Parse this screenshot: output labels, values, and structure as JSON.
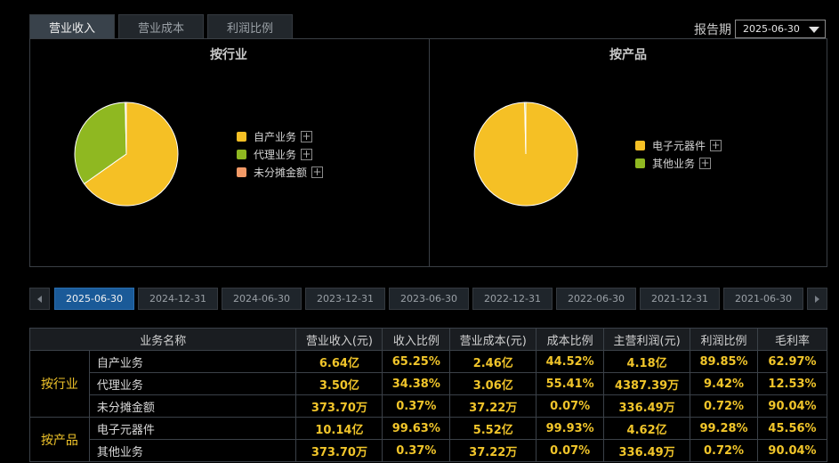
{
  "tabs": [
    {
      "label": "营业收入",
      "active": true
    },
    {
      "label": "营业成本",
      "active": false
    },
    {
      "label": "利润比例",
      "active": false
    }
  ],
  "report_period": {
    "label": "报告期",
    "value": "2025-06-30"
  },
  "chart_data": [
    {
      "type": "pie",
      "title": "按行业",
      "categories": [
        "自产业务",
        "代理业务",
        "未分摊金额"
      ],
      "values": [
        65.25,
        34.38,
        0.37
      ],
      "colors": [
        "#f5c025",
        "#8fb821",
        "#f29a67"
      ]
    },
    {
      "type": "pie",
      "title": "按产品",
      "categories": [
        "电子元器件",
        "其他业务"
      ],
      "values": [
        99.63,
        0.37
      ],
      "colors": [
        "#f5c025",
        "#8fb821"
      ]
    }
  ],
  "periods": {
    "items": [
      "2025-06-30",
      "2024-12-31",
      "2024-06-30",
      "2023-12-31",
      "2023-06-30",
      "2022-12-31",
      "2022-06-30",
      "2021-12-31",
      "2021-06-30"
    ],
    "active_index": 0
  },
  "table": {
    "headers": [
      "业务名称",
      "营业收入(元)",
      "收入比例",
      "营业成本(元)",
      "成本比例",
      "主营利润(元)",
      "利润比例",
      "毛利率"
    ],
    "groups": [
      {
        "name": "按行业",
        "rows": [
          {
            "name": "自产业务",
            "cells": [
              "6.64亿",
              "65.25%",
              "2.46亿",
              "44.52%",
              "4.18亿",
              "89.85%",
              "62.97%"
            ]
          },
          {
            "name": "代理业务",
            "cells": [
              "3.50亿",
              "34.38%",
              "3.06亿",
              "55.41%",
              "4387.39万",
              "9.42%",
              "12.53%"
            ]
          },
          {
            "name": "未分摊金额",
            "cells": [
              "373.70万",
              "0.37%",
              "37.22万",
              "0.07%",
              "336.49万",
              "0.72%",
              "90.04%"
            ]
          }
        ]
      },
      {
        "name": "按产品",
        "rows": [
          {
            "name": "电子元器件",
            "cells": [
              "10.14亿",
              "99.63%",
              "5.52亿",
              "99.93%",
              "4.62亿",
              "99.28%",
              "45.56%"
            ]
          },
          {
            "name": "其他业务",
            "cells": [
              "373.70万",
              "0.37%",
              "37.22万",
              "0.07%",
              "336.49万",
              "0.72%",
              "90.04%"
            ]
          }
        ]
      }
    ]
  }
}
